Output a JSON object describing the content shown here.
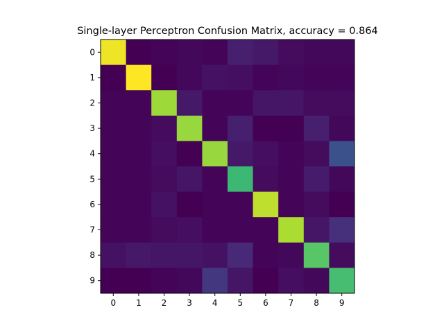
{
  "chart_data": {
    "type": "heatmap",
    "title": "Single-layer Perceptron Confusion Matrix, accuracy = 0.864",
    "xlabel": "",
    "ylabel": "",
    "x_categories": [
      "0",
      "1",
      "2",
      "3",
      "4",
      "5",
      "6",
      "7",
      "8",
      "9"
    ],
    "y_categories": [
      "0",
      "1",
      "2",
      "3",
      "4",
      "5",
      "6",
      "7",
      "8",
      "9"
    ],
    "colormap": "viridis",
    "grid": false,
    "values": [
      [
        0.98,
        0.0,
        0.01,
        0.02,
        0.01,
        0.09,
        0.07,
        0.03,
        0.02,
        0.02
      ],
      [
        0.0,
        1.0,
        0.0,
        0.02,
        0.05,
        0.04,
        0.01,
        0.02,
        0.01,
        0.01
      ],
      [
        0.01,
        0.01,
        0.86,
        0.07,
        0.01,
        0.01,
        0.06,
        0.06,
        0.03,
        0.03
      ],
      [
        0.01,
        0.01,
        0.03,
        0.85,
        0.01,
        0.09,
        0.0,
        0.0,
        0.09,
        0.02
      ],
      [
        0.01,
        0.01,
        0.04,
        0.0,
        0.85,
        0.07,
        0.04,
        0.01,
        0.03,
        0.25
      ],
      [
        0.01,
        0.01,
        0.03,
        0.06,
        0.01,
        0.68,
        0.03,
        0.01,
        0.08,
        0.02
      ],
      [
        0.01,
        0.01,
        0.05,
        0.0,
        0.01,
        0.01,
        0.91,
        0.01,
        0.03,
        0.0
      ],
      [
        0.01,
        0.01,
        0.03,
        0.04,
        0.01,
        0.01,
        0.01,
        0.88,
        0.06,
        0.14
      ],
      [
        0.05,
        0.07,
        0.06,
        0.06,
        0.05,
        0.12,
        0.01,
        0.02,
        0.74,
        0.03
      ],
      [
        0.0,
        0.0,
        0.01,
        0.02,
        0.17,
        0.06,
        0.0,
        0.04,
        0.02,
        0.7
      ]
    ]
  }
}
